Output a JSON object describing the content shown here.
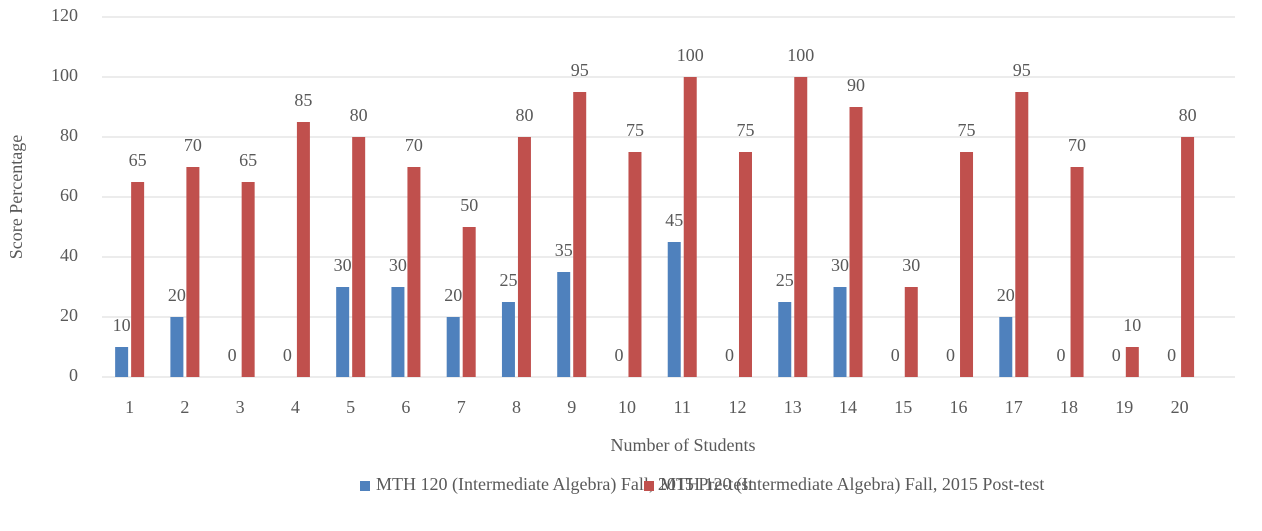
{
  "chart_data": {
    "type": "bar",
    "categories": [
      "1",
      "2",
      "3",
      "4",
      "5",
      "6",
      "7",
      "8",
      "9",
      "10",
      "11",
      "12",
      "13",
      "14",
      "15",
      "16",
      "17",
      "18",
      "19",
      "20"
    ],
    "series": [
      {
        "name": "MTH 120 (Intermediate Algebra) Fall, 2015 Pre-test",
        "color": "#4f81bd",
        "values": [
          10,
          20,
          0,
          0,
          30,
          30,
          20,
          25,
          35,
          0,
          45,
          0,
          25,
          30,
          0,
          0,
          20,
          0,
          0,
          0
        ]
      },
      {
        "name": "MTH 120 (Intermediate Algebra) Fall, 2015 Post-test",
        "color": "#c0504d",
        "values": [
          65,
          70,
          65,
          85,
          80,
          70,
          50,
          80,
          95,
          75,
          100,
          75,
          100,
          90,
          30,
          75,
          95,
          70,
          10,
          80
        ]
      }
    ],
    "xlabel": "Number of Students",
    "ylabel": "Score Percentage",
    "ylim": [
      0,
      120
    ],
    "yticks": [
      0,
      20,
      40,
      60,
      80,
      100,
      120
    ],
    "grid": true,
    "legend": "bottom"
  }
}
